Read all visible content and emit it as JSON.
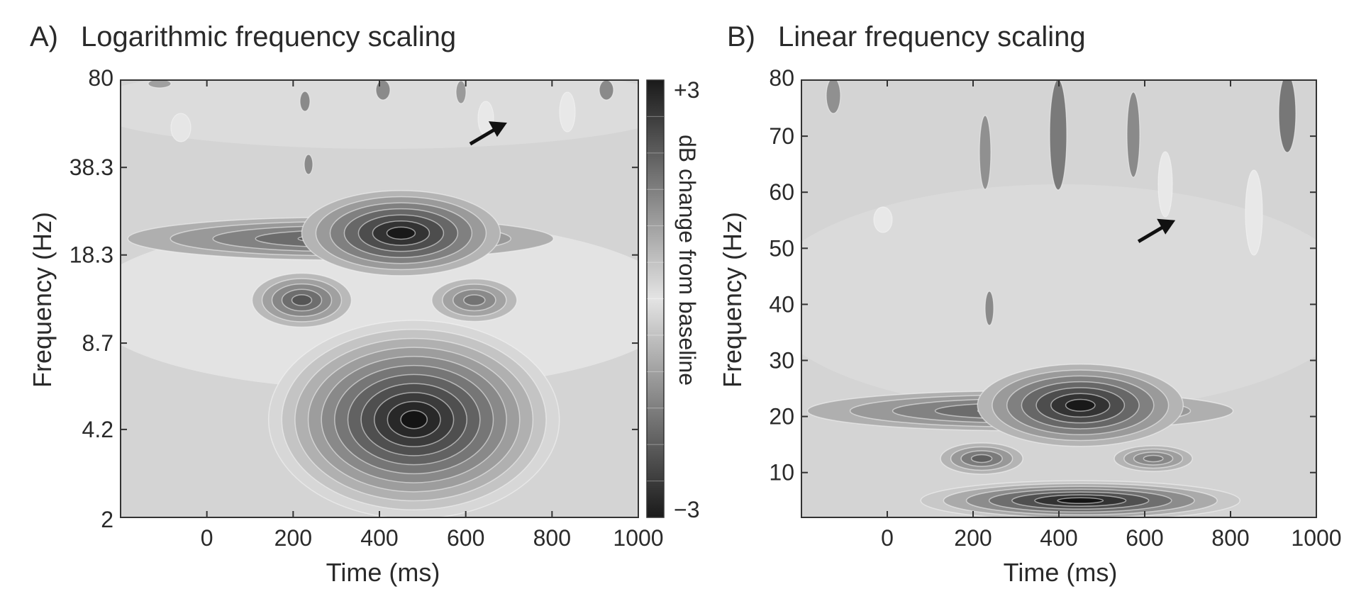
{
  "chart_data": [
    {
      "type": "heatmap",
      "panel_letter": "A)",
      "title": "Logarithmic frequency scaling",
      "xlabel": "Time (ms)",
      "ylabel": "Frequency (Hz)",
      "x_ticks": [
        "0",
        "200",
        "400",
        "600",
        "800",
        "1000"
      ],
      "y_ticks": [
        "2",
        "4.2",
        "8.7",
        "18.3",
        "38.3",
        "80"
      ],
      "xlim": [
        -200,
        1000
      ],
      "ylim": [
        2,
        80
      ],
      "y_scale": "log",
      "colorbar": {
        "label": "dB change from baseline",
        "max_label": "+3",
        "min_label": "−3",
        "range": [
          -3,
          3
        ]
      },
      "features": [
        {
          "kind": "power-increase",
          "time_ms": 470,
          "freq_hz": 5.3,
          "value_db": 3
        },
        {
          "kind": "power-increase",
          "time_ms": 450,
          "freq_hz": 22,
          "value_db": 3
        },
        {
          "kind": "power-increase",
          "time_ms": 220,
          "freq_hz": 12.5,
          "value_db": 1.5
        },
        {
          "kind": "power-increase",
          "time_ms": 620,
          "freq_hz": 12.5,
          "value_db": 1.2
        }
      ],
      "annotation": {
        "kind": "arrow",
        "time_ms": 630,
        "freq_hz": 60
      }
    },
    {
      "type": "heatmap",
      "panel_letter": "B)",
      "title": "Linear frequency scaling",
      "xlabel": "Time (ms)",
      "ylabel": "Frequency (Hz)",
      "x_ticks": [
        "0",
        "200",
        "400",
        "600",
        "800",
        "1000"
      ],
      "y_ticks": [
        "10",
        "20",
        "30",
        "40",
        "50",
        "60",
        "70",
        "80"
      ],
      "xlim": [
        -200,
        1000
      ],
      "ylim": [
        2,
        80
      ],
      "y_scale": "linear",
      "features": [
        {
          "kind": "power-increase",
          "time_ms": 450,
          "freq_hz": 5,
          "value_db": 3
        },
        {
          "kind": "power-increase",
          "time_ms": 450,
          "freq_hz": 22,
          "value_db": 3
        },
        {
          "kind": "power-increase",
          "time_ms": 220,
          "freq_hz": 12.5,
          "value_db": 1.5
        },
        {
          "kind": "power-increase",
          "time_ms": 620,
          "freq_hz": 12.5,
          "value_db": 1.2
        }
      ],
      "annotation": {
        "kind": "arrow",
        "time_ms": 630,
        "freq_hz": 55
      }
    }
  ]
}
